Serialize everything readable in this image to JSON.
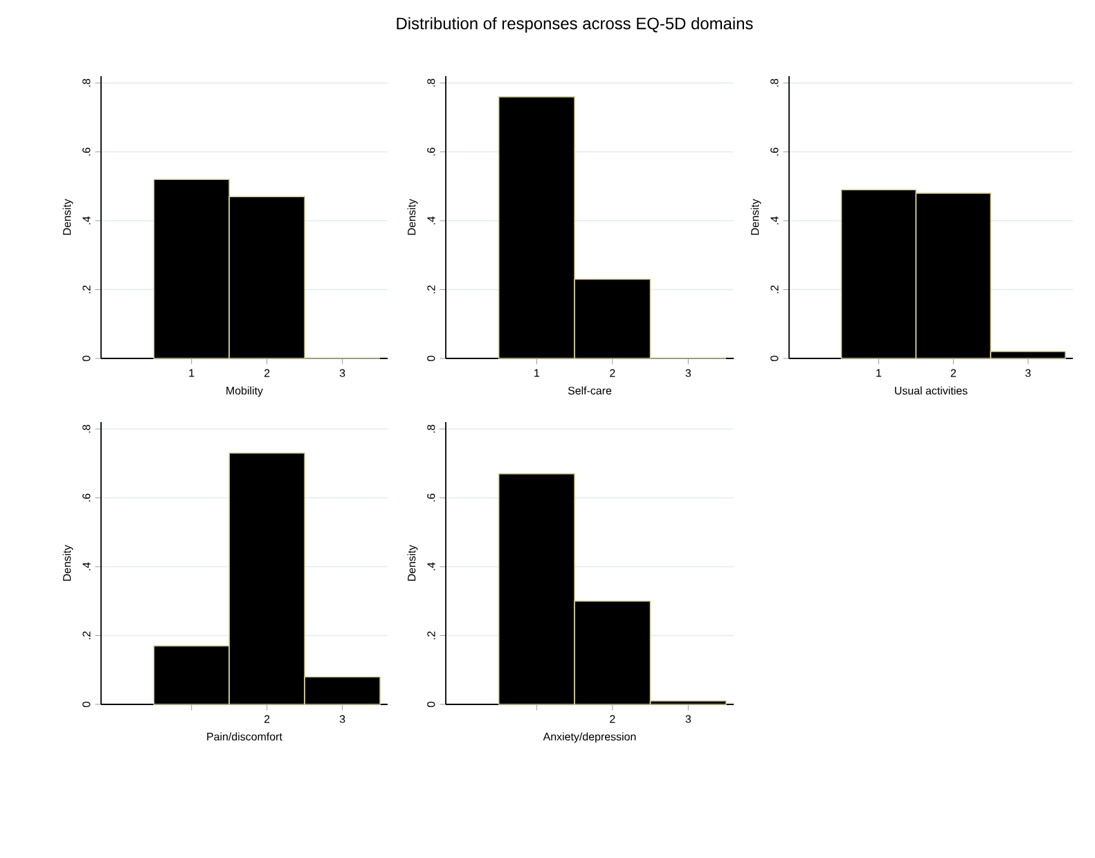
{
  "chart_data": [
    {
      "type": "histogram",
      "xlabel": "Mobility",
      "ylabel": "Density",
      "bins": [
        0.5,
        1.5,
        2.5,
        3.5
      ],
      "values": [
        0.52,
        0.47,
        0
      ],
      "color": "#000000",
      "xlim": [
        -0.2,
        3.6
      ],
      "ylim": [
        0,
        0.82
      ],
      "xticks": [
        1,
        2,
        3
      ],
      "yticks": [
        0,
        {
          "value": 0.2,
          "label": ".2"
        },
        {
          "value": 0.4,
          "label": ".4"
        },
        {
          "value": 0.6,
          "label": ".6"
        },
        {
          "value": 0.8,
          "label": ".8"
        }
      ],
      "grid": "y"
    },
    {
      "type": "histogram",
      "title": "Distribution of responses across EQ-5D domains",
      "xlabel": "Self-care",
      "ylabel": "Density",
      "bins": [
        0.5,
        1.5,
        2.5,
        3.5
      ],
      "values": [
        0.76,
        0.23,
        0
      ],
      "color": "#000000",
      "xlim": [
        -0.2,
        3.6
      ],
      "ylim": [
        0,
        0.82
      ],
      "xticks": [
        1,
        2,
        3
      ],
      "yticks": [
        0,
        {
          "value": 0.2,
          "label": ".2"
        },
        {
          "value": 0.4,
          "label": ".4"
        },
        {
          "value": 0.6,
          "label": ".6"
        },
        {
          "value": 0.8,
          "label": ".8"
        }
      ],
      "grid": "y"
    },
    {
      "type": "histogram",
      "xlabel": "Usual activities",
      "ylabel": "Density",
      "bins": [
        0.5,
        1.5,
        2.5,
        3.5
      ],
      "values": [
        0.49,
        0.48,
        0.02
      ],
      "color": "#000000",
      "xlim": [
        -0.2,
        3.6
      ],
      "ylim": [
        0,
        0.82
      ],
      "xticks": [
        1,
        2,
        3
      ],
      "yticks": [
        0,
        {
          "value": 0.2,
          "label": ".2"
        },
        {
          "value": 0.4,
          "label": ".4"
        },
        {
          "value": 0.6,
          "label": ".6"
        },
        {
          "value": 0.8,
          "label": ".8"
        }
      ],
      "grid": "y"
    },
    {
      "type": "histogram",
      "xlabel": "Pain/discomfort",
      "ylabel": "Density",
      "bins": [
        0.5,
        1.5,
        2.5,
        3.5
      ],
      "values": [
        0.17,
        0.73,
        0.08
      ],
      "color": "#000000",
      "xlim": [
        -0.2,
        3.6
      ],
      "ylim": [
        0,
        0.82
      ],
      "xticks": [
        {
          "value": 1,
          "label": null
        },
        2,
        3
      ],
      "yticks": [
        0,
        {
          "value": 0.2,
          "label": ".2"
        },
        {
          "value": 0.4,
          "label": ".4"
        },
        {
          "value": 0.6,
          "label": ".6"
        },
        {
          "value": 0.8,
          "label": ".8"
        }
      ],
      "grid": "y"
    },
    {
      "type": "histogram",
      "xlabel": "Anxiety/depression",
      "ylabel": "Density",
      "bins": [
        0.5,
        1.5,
        2.5,
        3.5
      ],
      "values": [
        0.67,
        0.3,
        0.01
      ],
      "color": "#000000",
      "xlim": [
        -0.2,
        3.6
      ],
      "ylim": [
        0,
        0.82
      ],
      "xticks": [
        {
          "value": 1,
          "label": null
        },
        2,
        3
      ],
      "yticks": [
        0,
        {
          "value": 0.2,
          "label": ".2"
        },
        {
          "value": 0.4,
          "label": ".4"
        },
        {
          "value": 0.6,
          "label": ".6"
        },
        {
          "value": 0.8,
          "label": ".8"
        }
      ],
      "grid": "y"
    }
  ]
}
